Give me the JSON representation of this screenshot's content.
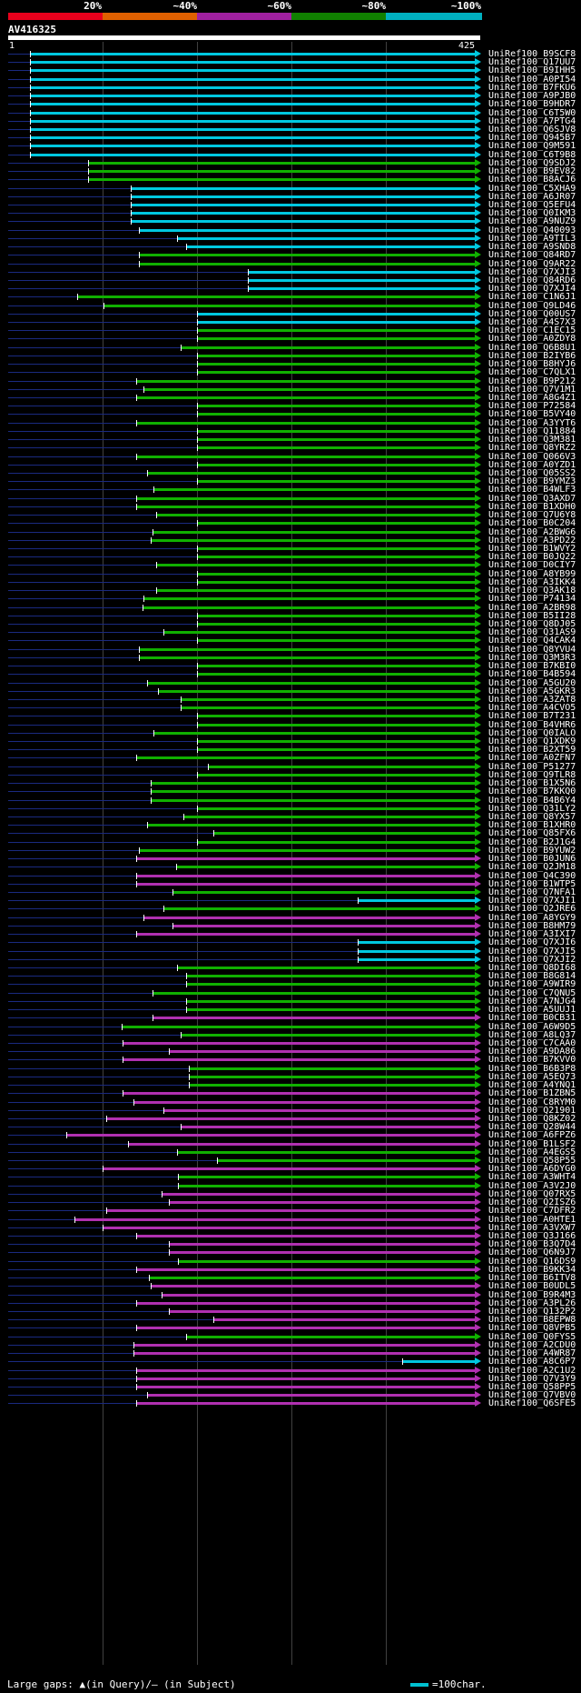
{
  "scale": {
    "segments": [
      {
        "color": "#e8001c"
      },
      {
        "color": "#e06000"
      },
      {
        "color": "#a020a0"
      },
      {
        "color": "#108000"
      },
      {
        "color": "#00b0c0"
      }
    ],
    "labels": [
      "20%",
      "~40%",
      "~60%",
      "~80%",
      "~100%"
    ]
  },
  "query": {
    "name": "AV416325",
    "length": 425,
    "start_label": "1",
    "end_label": "425"
  },
  "colors": {
    "cyan": "#00c8e0",
    "green": "#10b000",
    "purple": "#b030b0",
    "navy": "#1a2a80"
  },
  "hits": [
    {
      "name": "UniRef100_B9SCF8",
      "q_start": 20,
      "color": "cyan"
    },
    {
      "name": "UniRef100_Q17UU7",
      "q_start": 20,
      "color": "cyan"
    },
    {
      "name": "UniRef100_B9IHH5",
      "q_start": 20,
      "color": "cyan"
    },
    {
      "name": "UniRef100_A0PI54",
      "q_start": 20,
      "color": "cyan"
    },
    {
      "name": "UniRef100_B7FKU6",
      "q_start": 20,
      "color": "cyan"
    },
    {
      "name": "UniRef100_A9PJB0",
      "q_start": 20,
      "color": "cyan"
    },
    {
      "name": "UniRef100_B9HDR7",
      "q_start": 20,
      "color": "cyan"
    },
    {
      "name": "UniRef100_C6T5W0",
      "q_start": 20,
      "color": "cyan"
    },
    {
      "name": "UniRef100_A7PTG4",
      "q_start": 20,
      "color": "cyan"
    },
    {
      "name": "UniRef100_Q6SJV8",
      "q_start": 20,
      "color": "cyan"
    },
    {
      "name": "UniRef100_Q945B7",
      "q_start": 20,
      "color": "cyan"
    },
    {
      "name": "UniRef100_Q9M591",
      "q_start": 20,
      "color": "cyan"
    },
    {
      "name": "UniRef100_C6T9B8",
      "q_start": 20,
      "color": "cyan"
    },
    {
      "name": "UniRef100_Q9SDJ2",
      "q_start": 72,
      "color": "green"
    },
    {
      "name": "UniRef100_B9EV82",
      "q_start": 72,
      "color": "green"
    },
    {
      "name": "UniRef100_B8ACJ6",
      "q_start": 72,
      "color": "green"
    },
    {
      "name": "UniRef100_C5XHA9",
      "q_start": 110,
      "color": "cyan"
    },
    {
      "name": "UniRef100_A6JR07",
      "q_start": 110,
      "color": "cyan"
    },
    {
      "name": "UniRef100_Q5EFU4",
      "q_start": 110,
      "color": "cyan"
    },
    {
      "name": "UniRef100_Q0IKM3",
      "q_start": 110,
      "color": "cyan"
    },
    {
      "name": "UniRef100_A9NUZ9",
      "q_start": 110,
      "color": "cyan"
    },
    {
      "name": "UniRef100_Q40093",
      "q_start": 118,
      "color": "cyan"
    },
    {
      "name": "UniRef100_A9TIL3",
      "q_start": 152,
      "color": "cyan"
    },
    {
      "name": "UniRef100_A9SND8",
      "q_start": 160,
      "color": "cyan"
    },
    {
      "name": "UniRef100_Q84RD7",
      "q_start": 118,
      "color": "green"
    },
    {
      "name": "UniRef100_Q9AR22",
      "q_start": 118,
      "color": "green"
    },
    {
      "name": "UniRef100_Q7XJI3",
      "q_start": 216,
      "color": "cyan"
    },
    {
      "name": "UniRef100_Q84RD6",
      "q_start": 216,
      "color": "cyan"
    },
    {
      "name": "UniRef100_Q7XJI4",
      "q_start": 216,
      "color": "cyan"
    },
    {
      "name": "UniRef100_C1N6J1",
      "q_start": 62,
      "color": "green"
    },
    {
      "name": "UniRef100_Q9LD46",
      "q_start": 86,
      "color": "green"
    },
    {
      "name": "UniRef100_Q00US7",
      "q_start": 170,
      "color": "cyan"
    },
    {
      "name": "UniRef100_A4S7X3",
      "q_start": 170,
      "color": "cyan"
    },
    {
      "name": "UniRef100_C1EC15",
      "q_start": 170,
      "color": "green"
    },
    {
      "name": "UniRef100_A0ZDY8",
      "q_start": 170,
      "color": "green"
    },
    {
      "name": "UniRef100_Q6B8U1",
      "q_start": 155,
      "color": "green"
    },
    {
      "name": "UniRef100_B2IYB6",
      "q_start": 170,
      "color": "green"
    },
    {
      "name": "UniRef100_B8HYJ6",
      "q_start": 170,
      "color": "green"
    },
    {
      "name": "UniRef100_C7QLX1",
      "q_start": 170,
      "color": "green"
    },
    {
      "name": "UniRef100_B9P212",
      "q_start": 115,
      "color": "green"
    },
    {
      "name": "UniRef100_Q7V1M1",
      "q_start": 122,
      "color": "green"
    },
    {
      "name": "UniRef100_A8G4Z1",
      "q_start": 115,
      "color": "green"
    },
    {
      "name": "UniRef100_P72584",
      "q_start": 170,
      "color": "green"
    },
    {
      "name": "UniRef100_B5VY40",
      "q_start": 170,
      "color": "green"
    },
    {
      "name": "UniRef100_A3YYT6",
      "q_start": 115,
      "color": "green"
    },
    {
      "name": "UniRef100_Q11884",
      "q_start": 170,
      "color": "green"
    },
    {
      "name": "UniRef100_Q3M381",
      "q_start": 170,
      "color": "green"
    },
    {
      "name": "UniRef100_Q8YRZ2",
      "q_start": 170,
      "color": "green"
    },
    {
      "name": "UniRef100_Q066V3",
      "q_start": 115,
      "color": "green"
    },
    {
      "name": "UniRef100_A0YZD1",
      "q_start": 170,
      "color": "green"
    },
    {
      "name": "UniRef100_Q05SS2",
      "q_start": 125,
      "color": "green"
    },
    {
      "name": "UniRef100_B9YMZ3",
      "q_start": 170,
      "color": "green"
    },
    {
      "name": "UniRef100_B4WLF3",
      "q_start": 131,
      "color": "green"
    },
    {
      "name": "UniRef100_Q3AXD7",
      "q_start": 115,
      "color": "green"
    },
    {
      "name": "UniRef100_B1XDH0",
      "q_start": 115,
      "color": "green"
    },
    {
      "name": "UniRef100_Q7U6Y8",
      "q_start": 133,
      "color": "green"
    },
    {
      "name": "UniRef100_B0C204",
      "q_start": 170,
      "color": "green"
    },
    {
      "name": "UniRef100_A2BWG6",
      "q_start": 130,
      "color": "green"
    },
    {
      "name": "UniRef100_A3PD22",
      "q_start": 128,
      "color": "green"
    },
    {
      "name": "UniRef100_B1WVY2",
      "q_start": 170,
      "color": "green"
    },
    {
      "name": "UniRef100_B0JQ22",
      "q_start": 170,
      "color": "green"
    },
    {
      "name": "UniRef100_D0CIY7",
      "q_start": 133,
      "color": "green"
    },
    {
      "name": "UniRef100_A8YB99",
      "q_start": 170,
      "color": "green"
    },
    {
      "name": "UniRef100_A3IKK4",
      "q_start": 170,
      "color": "green"
    },
    {
      "name": "UniRef100_Q3AK18",
      "q_start": 133,
      "color": "green"
    },
    {
      "name": "UniRef100_P74134",
      "q_start": 122,
      "color": "green"
    },
    {
      "name": "UniRef100_A2BR98",
      "q_start": 121,
      "color": "green"
    },
    {
      "name": "UniRef100_B5II28",
      "q_start": 170,
      "color": "green"
    },
    {
      "name": "UniRef100_Q8DJ05",
      "q_start": 170,
      "color": "green"
    },
    {
      "name": "UniRef100_Q31AS9",
      "q_start": 140,
      "color": "green"
    },
    {
      "name": "UniRef100_Q4CAK4",
      "q_start": 170,
      "color": "green"
    },
    {
      "name": "UniRef100_Q8YVU4",
      "q_start": 118,
      "color": "green"
    },
    {
      "name": "UniRef100_Q3M3R3",
      "q_start": 118,
      "color": "green"
    },
    {
      "name": "UniRef100_B7KBI0",
      "q_start": 170,
      "color": "green"
    },
    {
      "name": "UniRef100_B4B594",
      "q_start": 170,
      "color": "green"
    },
    {
      "name": "UniRef100_A5GU20",
      "q_start": 125,
      "color": "green"
    },
    {
      "name": "UniRef100_A5GKR3",
      "q_start": 135,
      "color": "green"
    },
    {
      "name": "UniRef100_A3ZAT8",
      "q_start": 155,
      "color": "green"
    },
    {
      "name": "UniRef100_A4CVO5",
      "q_start": 155,
      "color": "green"
    },
    {
      "name": "UniRef100_B7T231",
      "q_start": 170,
      "color": "green"
    },
    {
      "name": "UniRef100_B4VHR6",
      "q_start": 170,
      "color": "green"
    },
    {
      "name": "UniRef100_Q0IALO",
      "q_start": 131,
      "color": "green"
    },
    {
      "name": "UniRef100_Q1XDK9",
      "q_start": 170,
      "color": "green"
    },
    {
      "name": "UniRef100_B2XT59",
      "q_start": 170,
      "color": "green"
    },
    {
      "name": "UniRef100_A0ZFN7",
      "q_start": 115,
      "color": "green"
    },
    {
      "name": "UniRef100_P51277",
      "q_start": 180,
      "color": "green"
    },
    {
      "name": "UniRef100_Q9TLR8",
      "q_start": 170,
      "color": "green"
    },
    {
      "name": "UniRef100_B1X5N6",
      "q_start": 128,
      "color": "green"
    },
    {
      "name": "UniRef100_B7KKQ0",
      "q_start": 128,
      "color": "green"
    },
    {
      "name": "UniRef100_B4B6Y4",
      "q_start": 128,
      "color": "green"
    },
    {
      "name": "UniRef100_Q31LY2",
      "q_start": 170,
      "color": "green"
    },
    {
      "name": "UniRef100_Q8YX57",
      "q_start": 158,
      "color": "green"
    },
    {
      "name": "UniRef100_B1XHR0",
      "q_start": 125,
      "color": "green"
    },
    {
      "name": "UniRef100_Q85FX6",
      "q_start": 185,
      "color": "green"
    },
    {
      "name": "UniRef100_B2J1G4",
      "q_start": 170,
      "color": "green"
    },
    {
      "name": "UniRef100_B9YUW2",
      "q_start": 118,
      "color": "green"
    },
    {
      "name": "UniRef100_B0JUN6",
      "q_start": 115,
      "color": "purple"
    },
    {
      "name": "UniRef100_Q2JM18",
      "q_start": 151,
      "color": "green"
    },
    {
      "name": "UniRef100_Q4C390",
      "q_start": 115,
      "color": "purple"
    },
    {
      "name": "UniRef100_B1WTP5",
      "q_start": 115,
      "color": "purple"
    },
    {
      "name": "UniRef100_Q7NFA1",
      "q_start": 148,
      "color": "green"
    },
    {
      "name": "UniRef100_Q7XJI1",
      "q_start": 315,
      "color": "cyan"
    },
    {
      "name": "UniRef100_Q2JRE6",
      "q_start": 140,
      "color": "green"
    },
    {
      "name": "UniRef100_A8YGY9",
      "q_start": 122,
      "color": "purple"
    },
    {
      "name": "UniRef100_B8HM79",
      "q_start": 148,
      "color": "purple"
    },
    {
      "name": "UniRef100_A3IXI7",
      "q_start": 115,
      "color": "purple"
    },
    {
      "name": "UniRef100_Q7XJI6",
      "q_start": 315,
      "color": "cyan"
    },
    {
      "name": "UniRef100_Q7XJI5",
      "q_start": 315,
      "color": "cyan"
    },
    {
      "name": "UniRef100_Q7XJI2",
      "q_start": 315,
      "color": "cyan"
    },
    {
      "name": "UniRef100_Q8DI68",
      "q_start": 152,
      "color": "green"
    },
    {
      "name": "UniRef100_B8G814",
      "q_start": 160,
      "color": "green"
    },
    {
      "name": "UniRef100_A9WIR9",
      "q_start": 160,
      "color": "green"
    },
    {
      "name": "UniRef100_C7QNU5",
      "q_start": 130,
      "color": "green"
    },
    {
      "name": "UniRef100_A7NJG4",
      "q_start": 160,
      "color": "green"
    },
    {
      "name": "UniRef100_A5UUJ1",
      "q_start": 160,
      "color": "green"
    },
    {
      "name": "UniRef100_B0CB31",
      "q_start": 130,
      "color": "purple"
    },
    {
      "name": "UniRef100_A6W9D5",
      "q_start": 102,
      "color": "green"
    },
    {
      "name": "UniRef100_A8LQ37",
      "q_start": 155,
      "color": "green"
    },
    {
      "name": "UniRef100_C7CAA0",
      "q_start": 103,
      "color": "purple"
    },
    {
      "name": "UniRef100_A9DA86",
      "q_start": 145,
      "color": "purple"
    },
    {
      "name": "UniRef100_B7KVV0",
      "q_start": 103,
      "color": "purple"
    },
    {
      "name": "UniRef100_B6B3P8",
      "q_start": 163,
      "color": "green"
    },
    {
      "name": "UniRef100_A5EQ73",
      "q_start": 163,
      "color": "green"
    },
    {
      "name": "UniRef100_A4YNQ1",
      "q_start": 163,
      "color": "green"
    },
    {
      "name": "UniRef100_B1ZBN5",
      "q_start": 103,
      "color": "purple"
    },
    {
      "name": "UniRef100_C8RYM0",
      "q_start": 113,
      "color": "purple"
    },
    {
      "name": "UniRef100_Q21901",
      "q_start": 140,
      "color": "purple"
    },
    {
      "name": "UniRef100_Q8KZ02",
      "q_start": 88,
      "color": "purple"
    },
    {
      "name": "UniRef100_Q28W44",
      "q_start": 155,
      "color": "purple"
    },
    {
      "name": "UniRef100_A6FPZ6",
      "q_start": 52,
      "color": "purple"
    },
    {
      "name": "UniRef100_B1LSF2",
      "q_start": 108,
      "color": "purple"
    },
    {
      "name": "UniRef100_A4EGS5",
      "q_start": 152,
      "color": "green"
    },
    {
      "name": "UniRef100_Q58P55",
      "q_start": 188,
      "color": "green"
    },
    {
      "name": "UniRef100_A6DYG0",
      "q_start": 85,
      "color": "purple"
    },
    {
      "name": "UniRef100_A3WHT4",
      "q_start": 153,
      "color": "green"
    },
    {
      "name": "UniRef100_A3V2J0",
      "q_start": 153,
      "color": "green"
    },
    {
      "name": "UniRef100_Q07RX5",
      "q_start": 138,
      "color": "purple"
    },
    {
      "name": "UniRef100_Q2ISZ6",
      "q_start": 145,
      "color": "purple"
    },
    {
      "name": "UniRef100_C7DFR2",
      "q_start": 88,
      "color": "purple"
    },
    {
      "name": "UniRef100_A0HTE1",
      "q_start": 60,
      "color": "purple"
    },
    {
      "name": "UniRef100_A3VXW7",
      "q_start": 85,
      "color": "purple"
    },
    {
      "name": "UniRef100_Q3J166",
      "q_start": 115,
      "color": "purple"
    },
    {
      "name": "UniRef100_B3Q7D4",
      "q_start": 145,
      "color": "purple"
    },
    {
      "name": "UniRef100_Q6N9J7",
      "q_start": 145,
      "color": "purple"
    },
    {
      "name": "UniRef100_Q16DS9",
      "q_start": 153,
      "color": "green"
    },
    {
      "name": "UniRef100_B9KK34",
      "q_start": 115,
      "color": "purple"
    },
    {
      "name": "UniRef100_B6ITV8",
      "q_start": 127,
      "color": "green"
    },
    {
      "name": "UniRef100_B0UDL5",
      "q_start": 128,
      "color": "purple"
    },
    {
      "name": "UniRef100_B9R4M3",
      "q_start": 138,
      "color": "purple"
    },
    {
      "name": "UniRef100_A3PL26",
      "q_start": 115,
      "color": "purple"
    },
    {
      "name": "UniRef100_Q132P2",
      "q_start": 145,
      "color": "purple"
    },
    {
      "name": "UniRef100_B8EPW8",
      "q_start": 185,
      "color": "purple"
    },
    {
      "name": "UniRef100_Q8VPB5",
      "q_start": 115,
      "color": "purple"
    },
    {
      "name": "UniRef100_Q0FYS5",
      "q_start": 160,
      "color": "green"
    },
    {
      "name": "UniRef100_A2CDU0",
      "q_start": 113,
      "color": "purple"
    },
    {
      "name": "UniRef100_A4WR87",
      "q_start": 113,
      "color": "purple"
    },
    {
      "name": "UniRef100_A8C6P7",
      "q_start": 355,
      "color": "cyan"
    },
    {
      "name": "UniRef100_A2C1U2",
      "q_start": 115,
      "color": "purple"
    },
    {
      "name": "UniRef100_Q7V3Y9",
      "q_start": 115,
      "color": "purple"
    },
    {
      "name": "UniRef100_Q58PP5",
      "q_start": 115,
      "color": "purple"
    },
    {
      "name": "UniRef100_Q7VBV0",
      "q_start": 125,
      "color": "purple"
    },
    {
      "name": "UniRef100_Q6SFE5",
      "q_start": 115,
      "color": "purple"
    }
  ],
  "footer": {
    "text": "Large gaps: ▲(in Query)/– (in Subject)",
    "legend": "=100char."
  }
}
